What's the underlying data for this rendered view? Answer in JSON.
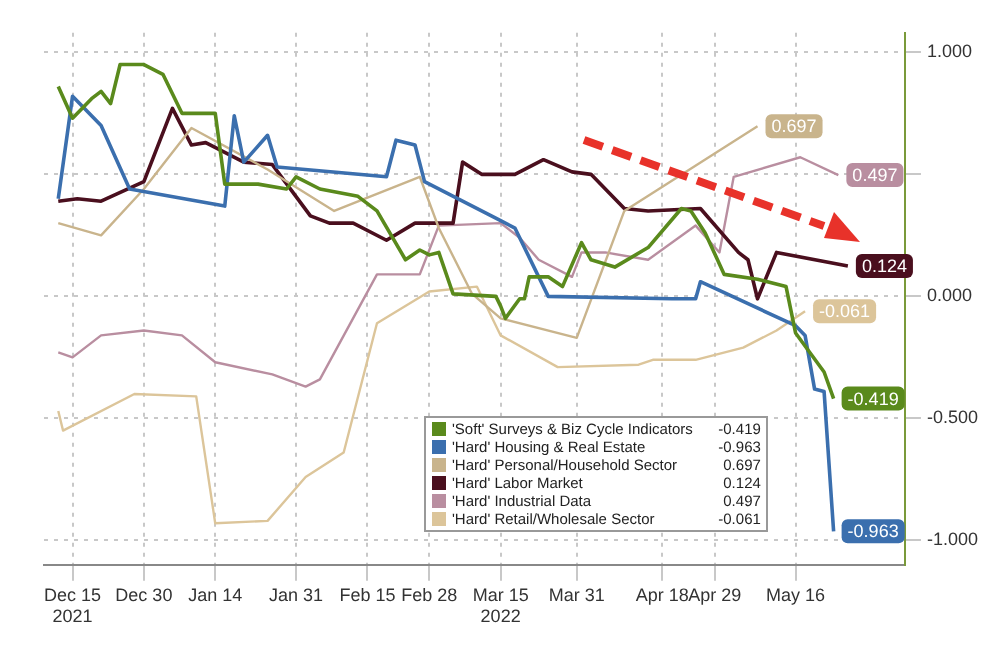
{
  "chart_data": {
    "type": "line",
    "xlim": [
      "2021-12-09",
      "2022-06-08"
    ],
    "ylim": [
      -1.1,
      1.08
    ],
    "xticks": [
      {
        "value": "2021-12-15",
        "label": "Dec 15\n2021"
      },
      {
        "value": "2021-12-30",
        "label": "Dec 30"
      },
      {
        "value": "2022-01-14",
        "label": "Jan 14"
      },
      {
        "value": "2022-01-31",
        "label": "Jan 31"
      },
      {
        "value": "2022-02-15",
        "label": "Feb 15"
      },
      {
        "value": "2022-02-28",
        "label": "Feb 28"
      },
      {
        "value": "2022-03-15",
        "label": "Mar 15\n2022"
      },
      {
        "value": "2022-03-31",
        "label": "Mar 31"
      },
      {
        "value": "2022-04-18",
        "label": "Apr 18"
      },
      {
        "value": "2022-04-29",
        "label": "Apr 29"
      },
      {
        "value": "2022-05-16",
        "label": "May 16"
      }
    ],
    "yticks": [
      {
        "value": 1,
        "label": "1.000"
      },
      {
        "value": 0.5,
        "label": null
      },
      {
        "value": 0,
        "label": "0.000"
      },
      {
        "value": -0.5,
        "label": "-0.500"
      },
      {
        "value": -1,
        "label": "-1.000"
      }
    ],
    "grid": true,
    "legend": "bottom right",
    "marker": "none",
    "series": [
      {
        "name": "'Soft' Surveys & Biz Cycle Indicators",
        "color": "#5a8a1c",
        "x": [
          "2021-12-12",
          "2021-12-15",
          "2021-12-19",
          "2021-12-21",
          "2021-12-23",
          "2021-12-25",
          "2021-12-30",
          "2022-01-03",
          "2022-01-07",
          "2022-01-14",
          "2022-01-16",
          "2022-01-23",
          "2022-01-29",
          "2022-01-31",
          "2022-02-05",
          "2022-02-13",
          "2022-02-17",
          "2022-02-23",
          "2022-02-26",
          "2022-02-28",
          "2022-03-02",
          "2022-03-05",
          "2022-03-14",
          "2022-03-15",
          "2022-03-16",
          "2022-03-19",
          "2022-03-20",
          "2022-03-21",
          "2022-03-25",
          "2022-03-28",
          "2022-04-01",
          "2022-04-03",
          "2022-04-08",
          "2022-04-15",
          "2022-04-22",
          "2022-04-24",
          "2022-04-27",
          "2022-05-01",
          "2022-05-08",
          "2022-05-14",
          "2022-05-16",
          "2022-05-22",
          "2022-05-24"
        ],
        "values": [
          0.86,
          0.73,
          0.81,
          0.84,
          0.79,
          0.95,
          0.95,
          0.91,
          0.75,
          0.75,
          0.46,
          0.46,
          0.44,
          0.49,
          0.44,
          0.41,
          0.35,
          0.15,
          0.19,
          0.17,
          0.18,
          0.01,
          0,
          -0.04,
          -0.09,
          -0.01,
          -0.01,
          0.08,
          0.08,
          0.04,
          0.22,
          0.15,
          0.12,
          0.2,
          0.36,
          0.35,
          0.26,
          0.09,
          0.07,
          0.04,
          -0.15,
          -0.31,
          -0.419
        ],
        "value_labels": [
          null,
          null,
          null,
          null,
          null,
          null,
          null,
          null,
          null,
          null,
          null,
          null,
          null,
          null,
          null,
          null,
          null,
          null,
          null,
          null,
          null,
          null,
          null,
          null,
          null,
          null,
          null,
          null,
          null,
          null,
          null,
          null,
          null,
          null,
          null,
          null,
          null,
          null,
          null,
          null,
          null,
          null,
          "-0.419"
        ]
      },
      {
        "name": "'Hard' Housing & Real Estate",
        "color": "#3b6fae",
        "x": [
          "2021-12-12",
          "2021-12-15",
          "2021-12-21",
          "2021-12-27",
          "2022-01-16",
          "2022-01-18",
          "2022-01-20",
          "2022-01-25",
          "2022-01-27",
          "2022-02-19",
          "2022-02-21",
          "2022-02-25",
          "2022-02-27",
          "2022-03-15",
          "2022-03-18",
          "2022-03-25",
          "2022-04-20",
          "2022-04-25",
          "2022-04-26",
          "2022-05-16",
          "2022-05-18",
          "2022-05-20",
          "2022-05-22",
          "2022-05-24"
        ],
        "values": [
          0.4,
          0.82,
          0.7,
          0.44,
          0.37,
          0.74,
          0.55,
          0.66,
          0.53,
          0.49,
          0.64,
          0.62,
          0.47,
          0.31,
          0.28,
          0,
          -0.01,
          -0.01,
          0.06,
          -0.12,
          -0.16,
          -0.38,
          -0.39,
          -0.963
        ],
        "value_labels": [
          null,
          null,
          null,
          null,
          null,
          null,
          null,
          null,
          null,
          null,
          null,
          null,
          null,
          null,
          null,
          null,
          null,
          null,
          null,
          null,
          null,
          null,
          null,
          "-0.963"
        ]
      },
      {
        "name": "'Hard' Personal/Household Sector",
        "color": "#c9b48c",
        "x": [
          "2021-12-12",
          "2021-12-21",
          "2021-12-30",
          "2022-01-09",
          "2022-01-25",
          "2022-02-08",
          "2022-02-26",
          "2022-03-02",
          "2022-03-09",
          "2022-03-15",
          "2022-03-31",
          "2022-04-10",
          "2022-05-08"
        ],
        "values": [
          0.3,
          0.25,
          0.44,
          0.69,
          0.52,
          0.35,
          0.49,
          0.28,
          0.01,
          -0.09,
          -0.17,
          0.35,
          0.697
        ],
        "value_labels": [
          null,
          null,
          null,
          null,
          null,
          null,
          null,
          null,
          null,
          null,
          null,
          null,
          "0.697"
        ]
      },
      {
        "name": "'Hard' Labor Market",
        "color": "#4a0f1e",
        "x": [
          "2021-12-12",
          "2021-12-16",
          "2021-12-21",
          "2021-12-30",
          "2022-01-05",
          "2022-01-09",
          "2022-01-12",
          "2022-01-20",
          "2022-01-26",
          "2022-02-03",
          "2022-02-07",
          "2022-02-12",
          "2022-02-19",
          "2022-02-25",
          "2022-03-05",
          "2022-03-07",
          "2022-03-11",
          "2022-03-15",
          "2022-03-18",
          "2022-03-24",
          "2022-03-30",
          "2022-04-03",
          "2022-04-10",
          "2022-04-15",
          "2022-04-26",
          "2022-05-04",
          "2022-05-06",
          "2022-05-08",
          "2022-05-12",
          "2022-05-27"
        ],
        "values": [
          0.39,
          0.4,
          0.39,
          0.47,
          0.77,
          0.62,
          0.63,
          0.55,
          0.54,
          0.33,
          0.3,
          0.3,
          0.23,
          0.3,
          0.3,
          0.55,
          0.5,
          0.5,
          0.5,
          0.56,
          0.51,
          0.5,
          0.36,
          0.35,
          0.36,
          0.18,
          0.15,
          -0.01,
          0.18,
          0.124
        ],
        "value_labels": [
          null,
          null,
          null,
          null,
          null,
          null,
          null,
          null,
          null,
          null,
          null,
          null,
          null,
          null,
          null,
          null,
          null,
          null,
          null,
          null,
          null,
          null,
          null,
          null,
          null,
          null,
          null,
          null,
          null,
          "0.124"
        ]
      },
      {
        "name": "'Hard' Industrial Data",
        "color": "#b98ea0",
        "x": [
          "2021-12-12",
          "2021-12-15",
          "2021-12-21",
          "2021-12-30",
          "2022-01-07",
          "2022-01-14",
          "2022-01-26",
          "2022-02-02",
          "2022-02-05",
          "2022-02-17",
          "2022-02-26",
          "2022-03-02",
          "2022-03-15",
          "2022-03-19",
          "2022-03-23",
          "2022-03-30",
          "2022-04-01",
          "2022-04-06",
          "2022-04-15",
          "2022-04-25",
          "2022-04-30",
          "2022-05-03",
          "2022-05-17",
          "2022-05-25"
        ],
        "values": [
          -0.23,
          -0.25,
          -0.16,
          -0.14,
          -0.16,
          -0.27,
          -0.32,
          -0.37,
          -0.34,
          0.09,
          0.09,
          0.29,
          0.3,
          0.24,
          0.15,
          0.08,
          0.18,
          0.18,
          0.15,
          0.29,
          0.18,
          0.49,
          0.57,
          0.497
        ],
        "value_labels": [
          null,
          null,
          null,
          null,
          null,
          null,
          null,
          null,
          null,
          null,
          null,
          null,
          null,
          null,
          null,
          null,
          null,
          null,
          null,
          null,
          null,
          null,
          null,
          "0.497"
        ]
      },
      {
        "name": "'Hard' Retail/Wholesale Sector",
        "color": "#dcc59a",
        "x": [
          "2021-12-12",
          "2021-12-13",
          "2021-12-28",
          "2022-01-10",
          "2022-01-14",
          "2022-01-25",
          "2022-02-02",
          "2022-02-10",
          "2022-02-17",
          "2022-02-28",
          "2022-03-10",
          "2022-03-15",
          "2022-03-27",
          "2022-04-13",
          "2022-04-16",
          "2022-04-25",
          "2022-05-05",
          "2022-05-12",
          "2022-05-18"
        ],
        "values": [
          -0.47,
          -0.55,
          -0.4,
          -0.41,
          -0.93,
          -0.92,
          -0.74,
          -0.64,
          -0.11,
          0.02,
          0.04,
          -0.16,
          -0.29,
          -0.28,
          -0.26,
          -0.26,
          -0.21,
          -0.14,
          -0.061
        ],
        "value_labels": [
          null,
          null,
          null,
          null,
          null,
          null,
          null,
          null,
          null,
          null,
          null,
          null,
          null,
          null,
          null,
          null,
          null,
          null,
          "-0.061"
        ]
      }
    ]
  }
}
